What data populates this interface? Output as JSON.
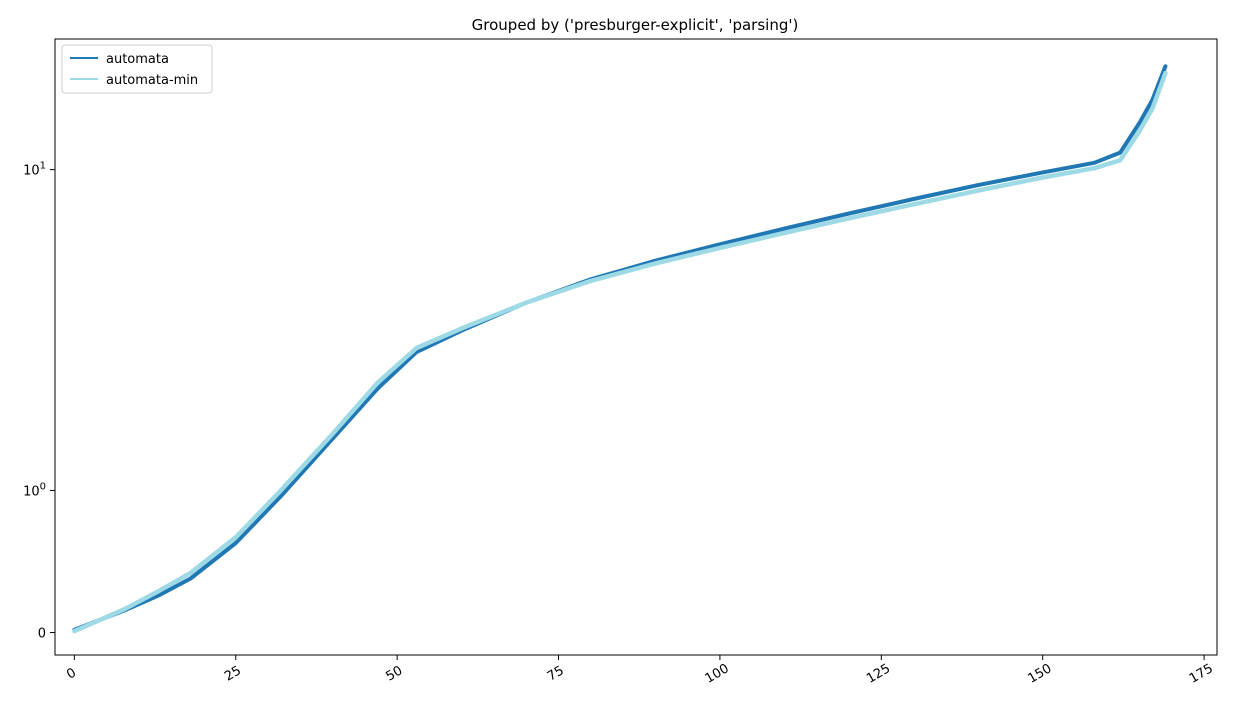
{
  "chart_data": {
    "type": "line",
    "title": "Grouped by ('presburger-explicit', 'parsing')",
    "xlabel": "",
    "ylabel": "",
    "x_scale": "linear",
    "y_scale": "symlog",
    "xlim": [
      -3,
      177
    ],
    "x_ticks": [
      {
        "value": 0,
        "label": "0"
      },
      {
        "value": 25,
        "label": "25"
      },
      {
        "value": 50,
        "label": "50"
      },
      {
        "value": 75,
        "label": "75"
      },
      {
        "value": 100,
        "label": "100"
      },
      {
        "value": 125,
        "label": "125"
      },
      {
        "value": 150,
        "label": "150"
      },
      {
        "value": 175,
        "label": "175"
      }
    ],
    "y_ticks": [
      {
        "value": 0,
        "base": "",
        "exp": "",
        "text": "0"
      },
      {
        "value": 1,
        "base": "10",
        "exp": "0",
        "text": ""
      },
      {
        "value": 10,
        "base": "10",
        "exp": "1",
        "text": ""
      }
    ],
    "grid": false,
    "legend_position": "top-left",
    "series": [
      {
        "name": "automata",
        "color": "#1f77b4",
        "x": [
          0,
          4,
          8,
          13,
          18,
          25,
          32,
          40,
          47,
          53,
          60,
          70,
          80,
          90,
          100,
          110,
          120,
          130,
          140,
          150,
          158,
          162,
          165,
          167,
          169
        ],
        "y": [
          0.02,
          0.09,
          0.16,
          0.26,
          0.38,
          0.63,
          0.96,
          1.45,
          2.08,
          2.7,
          3.15,
          3.85,
          4.55,
          5.2,
          5.85,
          6.55,
          7.3,
          8.1,
          8.95,
          9.8,
          10.5,
          11.3,
          14.0,
          16.5,
          21.0
        ]
      },
      {
        "name": "automata-min",
        "color": "#9edae5",
        "x": [
          0,
          4,
          8,
          13,
          18,
          25,
          32,
          40,
          47,
          53,
          60,
          70,
          80,
          90,
          100,
          110,
          120,
          130,
          140,
          150,
          158,
          162,
          165,
          167,
          169
        ],
        "y": [
          0.01,
          0.09,
          0.17,
          0.29,
          0.42,
          0.67,
          1.0,
          1.5,
          2.17,
          2.78,
          3.2,
          3.85,
          4.5,
          5.1,
          5.7,
          6.35,
          7.05,
          7.8,
          8.6,
          9.45,
          10.1,
          10.7,
          13.2,
          15.5,
          20.0
        ]
      }
    ]
  }
}
